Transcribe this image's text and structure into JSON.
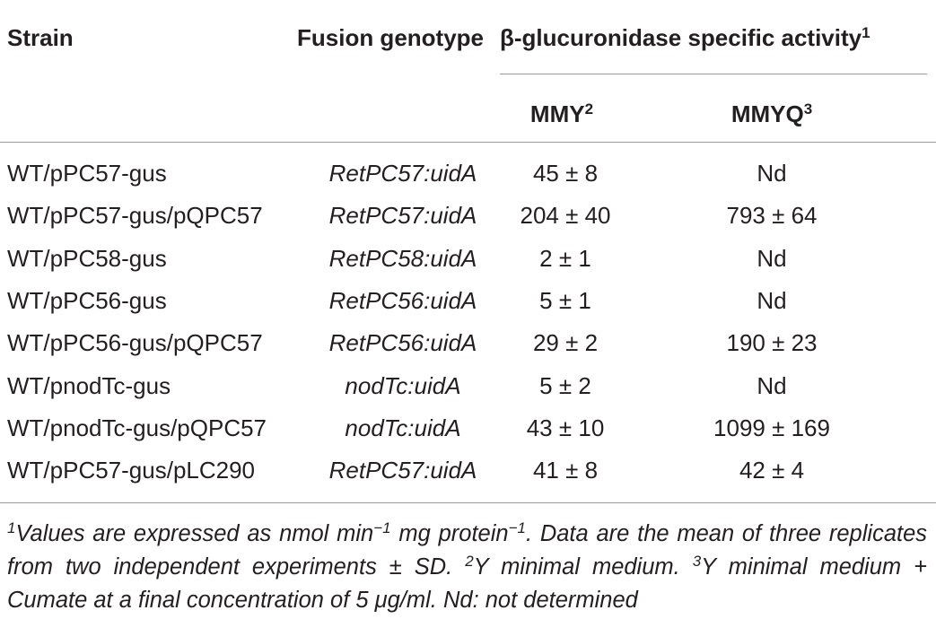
{
  "table": {
    "header": {
      "strain": "Strain",
      "genotype": "Fusion genotype",
      "activity": {
        "text": "β-glucuronidase specific activity",
        "sup": "1"
      },
      "mmy": {
        "text": "MMY",
        "sup": "2"
      },
      "mmyq": {
        "text": "MMYQ",
        "sup": "3"
      }
    },
    "rows": [
      [
        "WT/pPC57-gus",
        "RetPC57:uidA",
        "45 ± 8",
        "Nd"
      ],
      [
        "WT/pPC57-gus/pQPC57",
        "RetPC57:uidA",
        "204 ± 40",
        "793 ± 64"
      ],
      [
        "WT/pPC58-gus",
        "RetPC58:uidA",
        "2 ± 1",
        "Nd"
      ],
      [
        "WT/pPC56-gus",
        "RetPC56:uidA",
        "5 ± 1",
        "Nd"
      ],
      [
        "WT/pPC56-gus/pQPC57",
        "RetPC56:uidA",
        "29 ± 2",
        "190 ± 23"
      ],
      [
        "WT/pnodTc-gus",
        "nodTc:uidA",
        "5 ± 2",
        "Nd"
      ],
      [
        "WT/pnodTc-gus/pQPC57",
        "nodTc:uidA",
        "43 ± 10",
        "1099 ± 169"
      ],
      [
        "WT/pPC57-gus/pLC290",
        "RetPC57:uidA",
        "41 ± 8",
        "42 ± 4"
      ]
    ],
    "footnote": [
      {
        "sup": "1"
      },
      {
        "text": "Values are expressed as nmol min"
      },
      {
        "sup": "−1"
      },
      {
        "text": " mg protein"
      },
      {
        "sup": "−1"
      },
      {
        "text": ". Data are the mean of three replicates from two independent experiments ± SD. "
      },
      {
        "sup": "2"
      },
      {
        "text": "Y minimal medium. "
      },
      {
        "sup": "3"
      },
      {
        "text": "Y minimal medium + Cumate at a final concentration of 5 μg/ml. Nd: not determined"
      }
    ]
  }
}
